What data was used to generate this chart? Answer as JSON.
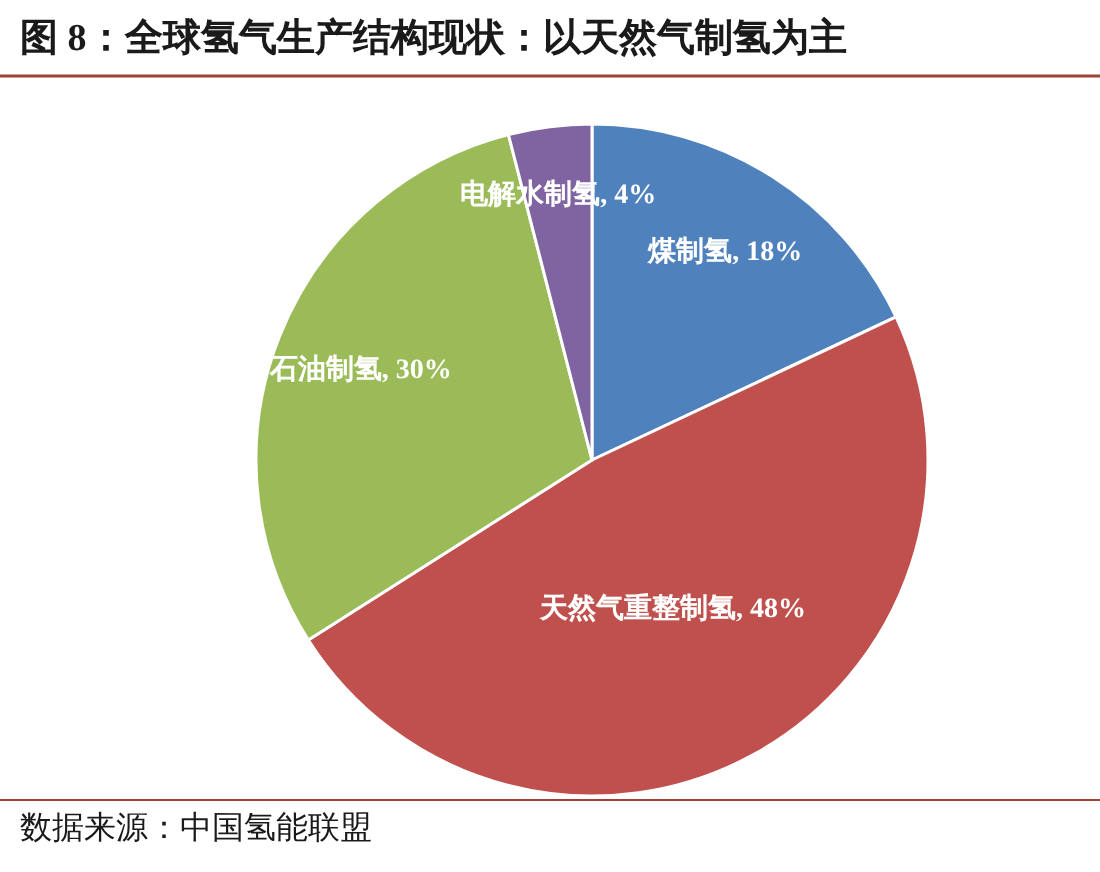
{
  "chart_data": {
    "type": "pie",
    "title": "图 8：全球氢气生产结构现状：以天然气制氢为主",
    "categories": [
      "煤制氢",
      "天然气重整制氢",
      "石油制氢",
      "电解水制氢"
    ],
    "values": [
      18,
      48,
      30,
      4
    ],
    "value_labels": [
      "18%",
      "48%",
      "30%",
      "4%"
    ],
    "colors": [
      "#4f81bd",
      "#c0504d",
      "#9bbb59",
      "#8064a2"
    ],
    "annotations": [
      "数据来源：中国氢能联盟"
    ]
  }
}
